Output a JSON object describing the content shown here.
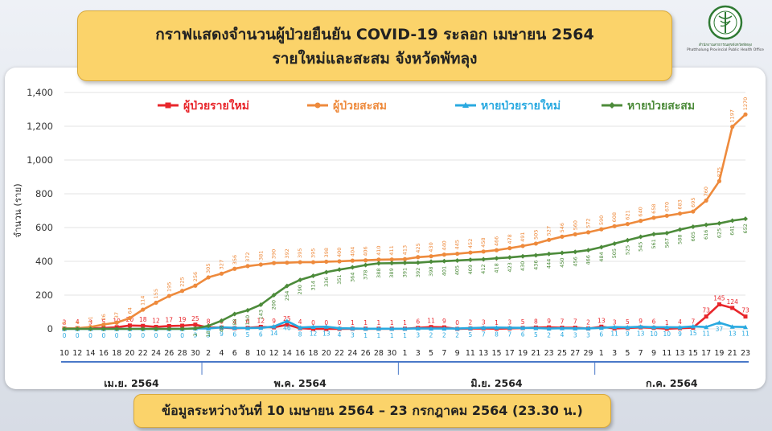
{
  "header": {
    "title_line1": "กราฟแสดงจำนวนผู้ป่วยยืนยัน COVID-19 ระลอก เมษายน 2564",
    "title_line2": "รายใหม่และสะสม จังหวัดพัทลุง"
  },
  "logo": {
    "text_th": "สำนักงานสาธารณสุขจังหวัดพัทลุง",
    "text_en": "Phatthalung Provincial Public Health Office"
  },
  "footer": {
    "text": "ข้อมูลระหว่างวันที่ 10 เมษายน 2564 – 23 กรกฎาคม 2564 (23.30 น.)"
  },
  "colors": {
    "new_cases": "#e8262b",
    "cum_cases": "#ee8a3c",
    "new_recovered": "#29a9e0",
    "cum_recovered": "#4c8b3a"
  },
  "chart_data": {
    "type": "line",
    "title": "",
    "ylabel": "จำนวน (ราย)",
    "ylim": [
      0,
      1400
    ],
    "yticks": [
      0,
      200,
      400,
      600,
      800,
      1000,
      1200,
      1400
    ],
    "ytick_labels": [
      "0",
      "200",
      "400",
      "600",
      "800",
      "1,000",
      "1,200",
      "1,400"
    ],
    "grid": true,
    "legend_position": "top",
    "x_tick_labels": [
      "10",
      "12",
      "14",
      "16",
      "18",
      "20",
      "22",
      "24",
      "26",
      "28",
      "30",
      "2",
      "4",
      "6",
      "8",
      "10",
      "12",
      "14",
      "16",
      "18",
      "20",
      "22",
      "24",
      "26",
      "28",
      "30",
      "1",
      "3",
      "5",
      "7",
      "9",
      "11",
      "13",
      "15",
      "17",
      "19",
      "21",
      "23",
      "25",
      "27",
      "29",
      "1",
      "3",
      "5",
      "7",
      "9",
      "11",
      "13",
      "15",
      "17",
      "19",
      "21",
      "23"
    ],
    "x_dates": [
      "2021-04-10",
      "2021-04-12",
      "2021-04-14",
      "2021-04-16",
      "2021-04-18",
      "2021-04-20",
      "2021-04-22",
      "2021-04-24",
      "2021-04-26",
      "2021-04-28",
      "2021-04-30",
      "2021-05-02",
      "2021-05-04",
      "2021-05-06",
      "2021-05-08",
      "2021-05-10",
      "2021-05-12",
      "2021-05-14",
      "2021-05-16",
      "2021-05-18",
      "2021-05-20",
      "2021-05-22",
      "2021-05-24",
      "2021-05-26",
      "2021-05-28",
      "2021-05-30",
      "2021-06-01",
      "2021-06-03",
      "2021-06-05",
      "2021-06-07",
      "2021-06-09",
      "2021-06-11",
      "2021-06-13",
      "2021-06-15",
      "2021-06-17",
      "2021-06-19",
      "2021-06-21",
      "2021-06-23",
      "2021-06-25",
      "2021-06-27",
      "2021-06-29",
      "2021-07-01",
      "2021-07-03",
      "2021-07-05",
      "2021-07-07",
      "2021-07-09",
      "2021-07-11",
      "2021-07-13",
      "2021-07-15",
      "2021-07-17",
      "2021-07-19",
      "2021-07-21",
      "2021-07-23"
    ],
    "months": [
      "เม.ย. 2564",
      "พ.ค. 2564",
      "มิ.ย. 2564",
      "ก.ค. 2564"
    ],
    "series": [
      {
        "name": "ผู้ป่วยรายใหม่",
        "color": "#e8262b",
        "values": [
          2,
          4,
          3,
          5,
          10,
          20,
          18,
          12,
          17,
          19,
          25,
          8,
          8,
          4,
          6,
          12,
          9,
          25,
          4,
          0,
          0,
          0,
          1,
          1,
          1,
          1,
          1,
          6,
          11,
          9,
          0,
          2,
          3,
          1,
          3,
          5,
          8,
          9,
          7,
          7,
          2,
          13,
          3,
          5,
          9,
          6,
          1,
          4,
          7,
          73,
          145,
          124,
          73
        ]
      },
      {
        "name": "ผู้ป่วยสะสม",
        "color": "#ee8a3c",
        "values": [
          2,
          4,
          11,
          26,
          37,
          64,
          114,
          155,
          195,
          225,
          256,
          305,
          327,
          356,
          372,
          381,
          390,
          392,
          395,
          395,
          398,
          400,
          404,
          406,
          410,
          411,
          413,
          425,
          430,
          440,
          445,
          452,
          458,
          466,
          478,
          491,
          505,
          527,
          546,
          560,
          572,
          590,
          608,
          621,
          640,
          658,
          670,
          683,
          695,
          760,
          875,
          1197,
          1270
        ]
      },
      {
        "name": "หายป่วยรายใหม่",
        "color": "#29a9e0",
        "values": [
          0,
          0,
          0,
          0,
          0,
          0,
          0,
          0,
          0,
          0,
          3,
          3,
          9,
          6,
          5,
          6,
          14,
          46,
          8,
          12,
          13,
          4,
          3,
          1,
          1,
          1,
          1,
          3,
          2,
          2,
          2,
          5,
          7,
          8,
          7,
          6,
          5,
          2,
          4,
          3,
          3,
          6,
          11,
          9,
          13,
          10,
          10,
          9,
          15,
          11,
          37,
          13,
          11
        ]
      },
      {
        "name": "หายป่วยสะสม",
        "color": "#4c8b3a",
        "values": [
          0,
          0,
          0,
          0,
          0,
          0,
          0,
          0,
          0,
          0,
          3,
          18,
          48,
          88,
          110,
          143,
          200,
          254,
          290,
          314,
          336,
          351,
          364,
          378,
          388,
          389,
          391,
          392,
          398,
          401,
          405,
          409,
          412,
          418,
          423,
          430,
          436,
          444,
          450,
          456,
          466,
          484,
          505,
          525,
          545,
          561,
          567,
          588,
          605,
          616,
          625,
          641,
          652
        ]
      }
    ]
  }
}
